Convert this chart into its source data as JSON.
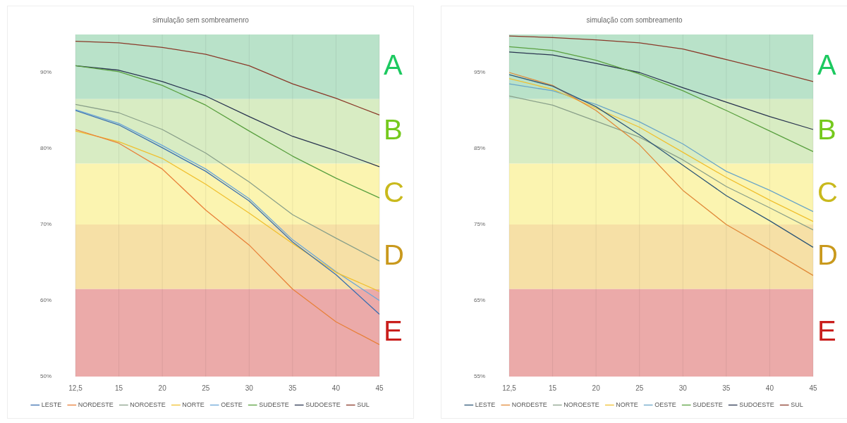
{
  "chart_data": [
    {
      "type": "line",
      "title": "simulação sem sombreamenro",
      "categories": [
        "12,5",
        "15",
        "20",
        "25",
        "30",
        "35",
        "40",
        "45"
      ],
      "series": [
        {
          "name": "LESTE",
          "color": "#3a6fb0",
          "values": [
            85.0,
            83.1,
            80.1,
            77.0,
            73.1,
            67.7,
            63.4,
            58.2
          ]
        },
        {
          "name": "NORDESTE",
          "color": "#e8803a",
          "values": [
            82.5,
            80.7,
            77.3,
            71.9,
            67.3,
            61.5,
            57.2,
            54.2
          ]
        },
        {
          "name": "NOROESTE",
          "color": "#8aa08a",
          "values": [
            85.8,
            84.7,
            82.5,
            79.4,
            75.6,
            71.3,
            68.2,
            65.2
          ]
        },
        {
          "name": "NORTE",
          "color": "#f0c030",
          "values": [
            82.3,
            80.9,
            78.7,
            75.3,
            71.5,
            67.5,
            63.7,
            61.2
          ]
        },
        {
          "name": "OESTE",
          "color": "#6aa6d8",
          "values": [
            85.1,
            83.3,
            80.4,
            77.3,
            73.4,
            68.0,
            63.8,
            60.0
          ]
        },
        {
          "name": "SUDESTE",
          "color": "#5aa040",
          "values": [
            90.9,
            90.1,
            88.3,
            85.7,
            82.3,
            79.0,
            76.1,
            73.5
          ]
        },
        {
          "name": "SUDOESTE",
          "color": "#2a3550",
          "values": [
            90.9,
            90.3,
            88.8,
            86.9,
            84.2,
            81.6,
            79.7,
            77.6
          ]
        },
        {
          "name": "SUL",
          "color": "#8a3a2a",
          "values": [
            94.1,
            93.9,
            93.3,
            92.4,
            90.9,
            88.5,
            86.6,
            84.4
          ]
        }
      ],
      "ylim": [
        50,
        95
      ],
      "yticks": [
        {
          "value": 50,
          "label": "50%"
        },
        {
          "value": 60,
          "label": "60%"
        },
        {
          "value": 70,
          "label": "70%"
        },
        {
          "value": 80,
          "label": "80%"
        },
        {
          "value": 90,
          "label": "90%"
        }
      ],
      "bands": [
        {
          "axis": "y",
          "from": 86.5,
          "to": 95,
          "label": "A",
          "color": "#b9e2c9"
        },
        {
          "axis": "y",
          "from": 78,
          "to": 86.5,
          "label": "B",
          "color": "#d8ecc3"
        },
        {
          "axis": "y",
          "from": 70,
          "to": 78,
          "label": "C",
          "color": "#fbf4b0"
        },
        {
          "axis": "y",
          "from": 61.5,
          "to": 70,
          "label": "D",
          "color": "#f6e0a6"
        },
        {
          "axis": "y",
          "from": 50,
          "to": 61.5,
          "label": "E",
          "color": "#ebaaa9"
        }
      ],
      "grid": "x",
      "legend": "bottom",
      "marker": "none",
      "line_style": "solid"
    },
    {
      "type": "line",
      "title": "simulação com sombreamento",
      "categories": [
        "12,5",
        "15",
        "20",
        "25",
        "30",
        "35",
        "40",
        "45"
      ],
      "series": [
        {
          "name": "LESTE",
          "color": "#2f5878",
          "values": [
            94.7,
            93.2,
            90.5,
            86.8,
            82.8,
            78.8,
            75.5,
            72.0
          ]
        },
        {
          "name": "NORDESTE",
          "color": "#e08a3a",
          "values": [
            95.0,
            93.3,
            90.0,
            85.5,
            79.5,
            75.0,
            71.7,
            68.3
          ]
        },
        {
          "name": "NOROESTE",
          "color": "#8aa08a",
          "values": [
            91.9,
            90.7,
            88.6,
            86.5,
            83.5,
            80.0,
            77.2,
            74.3
          ]
        },
        {
          "name": "NORTE",
          "color": "#f0c030",
          "values": [
            94.2,
            92.8,
            90.3,
            87.8,
            84.5,
            81.2,
            78.2,
            75.4
          ]
        },
        {
          "name": "OESTE",
          "color": "#6aa6c8",
          "values": [
            93.5,
            92.6,
            90.8,
            88.5,
            85.6,
            82.0,
            79.5,
            76.7
          ]
        },
        {
          "name": "SUDESTE",
          "color": "#5aa040",
          "values": [
            98.4,
            97.9,
            96.6,
            94.8,
            92.6,
            90.0,
            87.3,
            84.6
          ]
        },
        {
          "name": "SUDOESTE",
          "color": "#2a3550",
          "values": [
            97.7,
            97.3,
            96.2,
            95.0,
            93.0,
            91.1,
            89.2,
            87.5
          ]
        },
        {
          "name": "SUL",
          "color": "#8a3a2a",
          "values": [
            99.8,
            99.6,
            99.3,
            98.9,
            98.1,
            96.7,
            95.3,
            93.8
          ]
        }
      ],
      "ylim": [
        55,
        100
      ],
      "yticks": [
        {
          "value": 55,
          "label": "55%"
        },
        {
          "value": 65,
          "label": "65%"
        },
        {
          "value": 75,
          "label": "75%"
        },
        {
          "value": 85,
          "label": "85%"
        },
        {
          "value": 95,
          "label": "95%"
        }
      ],
      "bands": [
        {
          "axis": "y",
          "from": 91.5,
          "to": 100,
          "label": "A",
          "color": "#b9e2c9"
        },
        {
          "axis": "y",
          "from": 83,
          "to": 91.5,
          "label": "B",
          "color": "#d8ecc3"
        },
        {
          "axis": "y",
          "from": 75,
          "to": 83,
          "label": "C",
          "color": "#fbf4b0"
        },
        {
          "axis": "y",
          "from": 66.5,
          "to": 75,
          "label": "D",
          "color": "#f6e0a6"
        },
        {
          "axis": "y",
          "from": 55,
          "to": 66.5,
          "label": "E",
          "color": "#ebaaa9"
        }
      ],
      "grid": "x",
      "legend": "bottom",
      "marker": "none",
      "line_style": "solid"
    }
  ]
}
